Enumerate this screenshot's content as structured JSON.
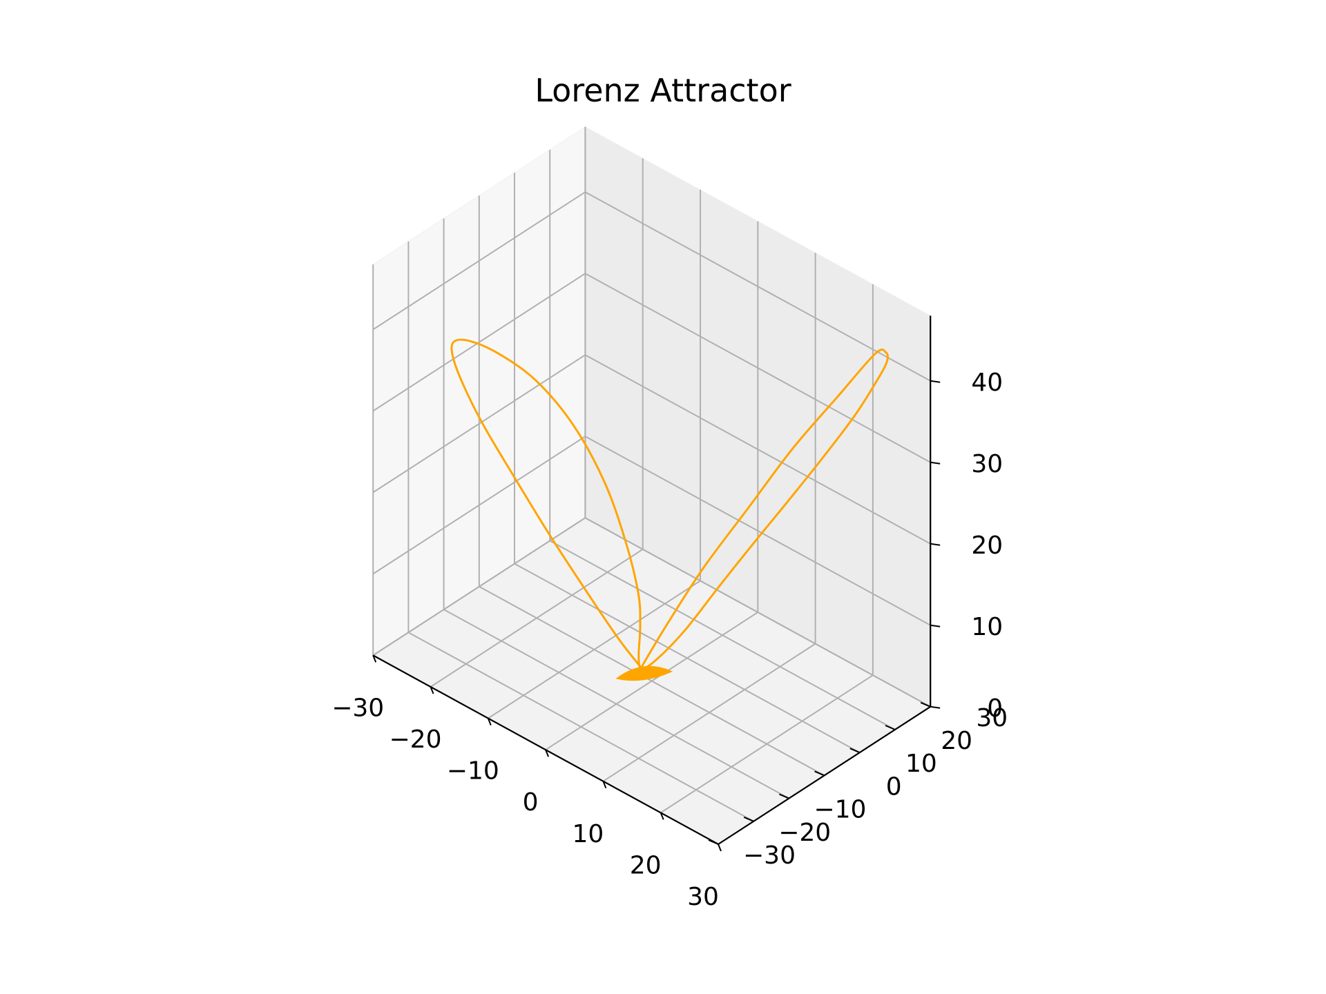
{
  "chart_data": {
    "type": "line",
    "projection": "3d",
    "title": "Lorenz Attractor",
    "xlabel": "",
    "ylabel": "",
    "zlabel": "",
    "xlim": [
      -30,
      30
    ],
    "ylim": [
      -30,
      30
    ],
    "zlim": [
      0,
      45
    ],
    "x_ticks": [
      -30,
      -20,
      -10,
      0,
      10,
      20,
      30
    ],
    "x_tick_labels": [
      "−30",
      "−20",
      "−10",
      "0",
      "10",
      "20",
      "30"
    ],
    "y_ticks": [
      -30,
      -20,
      -10,
      0,
      10,
      20,
      30
    ],
    "y_tick_labels": [
      "−30",
      "−20",
      "−10",
      "0",
      "10",
      "20",
      "30"
    ],
    "z_ticks": [
      0,
      10,
      20,
      30,
      40
    ],
    "z_tick_labels": [
      "0",
      "10",
      "20",
      "30",
      "40"
    ],
    "grid": true,
    "series": [
      {
        "color": "#ffa500",
        "x": [
          -2.0,
          -4.2,
          -8.0,
          -12.8,
          -17.5,
          -20.8,
          -22.5,
          -22.8,
          -21.8,
          -19.2,
          -15.2,
          -10.8,
          -6.8,
          -3.8,
          -2.2,
          -1.6,
          -2.0,
          -1.9,
          -1.6,
          0.3,
          4.0,
          8.0,
          12.0,
          16.0,
          19.5,
          22.5,
          24.5,
          25.5,
          25.2,
          23.8,
          20.0,
          15.0,
          10.0,
          5.0,
          1.0,
          -1.8
        ],
        "y": [
          0.0,
          -2.8,
          -5.5,
          -8.3,
          -11.0,
          -14.0,
          -16.8,
          -19.2,
          -20.5,
          -20.2,
          -18.5,
          -15.2,
          -11.2,
          -7.2,
          -3.9,
          -1.2,
          0.0,
          -0.6,
          -0.3,
          0.8,
          3.0,
          6.0,
          9.5,
          13.5,
          17.5,
          21.0,
          23.5,
          25.0,
          25.2,
          24.5,
          20.0,
          15.5,
          11.0,
          6.5,
          2.5,
          0.0
        ],
        "z": [
          1.0,
          4.5,
          9.5,
          15.5,
          21.8,
          27.5,
          32.5,
          36.5,
          39.0,
          40.0,
          39.5,
          37.0,
          32.0,
          25.0,
          17.5,
          10.5,
          6.0,
          2.5,
          1.0,
          2.5,
          7.0,
          13.0,
          19.0,
          25.0,
          30.5,
          35.5,
          39.5,
          42.0,
          43.0,
          42.5,
          37.0,
          30.0,
          22.0,
          14.0,
          6.5,
          1.0
        ]
      }
    ]
  }
}
